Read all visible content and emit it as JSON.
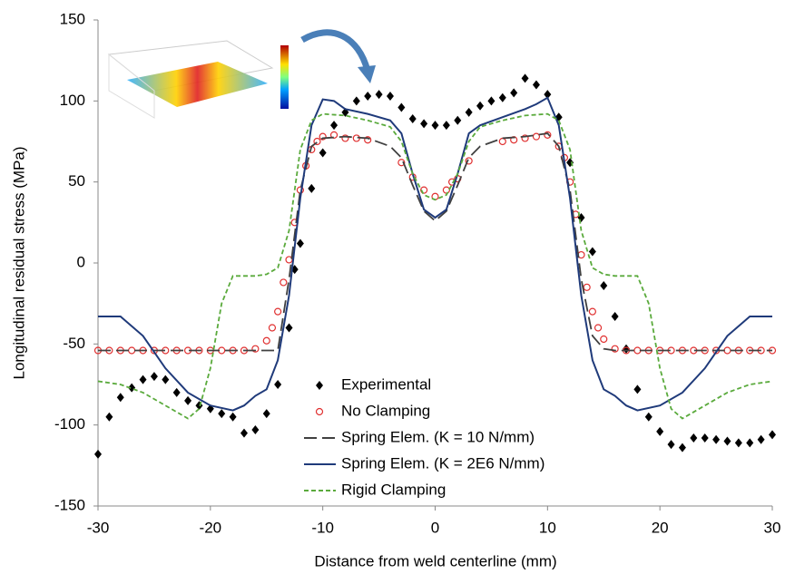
{
  "chart_data": {
    "type": "line",
    "x_label": "Distance from weld centerline (mm)",
    "y_label": "Longitudinal residual stress (MPa)",
    "xlim": [
      -30,
      30
    ],
    "xticks": [
      -30,
      -20,
      -10,
      0,
      10,
      20,
      30
    ],
    "ylim": [
      -150,
      150
    ],
    "yticks": [
      -150,
      -100,
      -50,
      0,
      50,
      100,
      150
    ],
    "series": [
      {
        "name": "Experimental",
        "color": "#000000",
        "style": "none",
        "marker": "diamond",
        "x": [
          -30,
          -29,
          -28,
          -27,
          -26,
          -25,
          -24,
          -23,
          -22,
          -21,
          -20,
          -19,
          -18,
          -17,
          -16,
          -15,
          -14,
          -13,
          -12.5,
          -12,
          -11,
          -10,
          -9,
          -8,
          -7,
          -6,
          -5,
          -4,
          -3,
          -2,
          -1,
          0,
          1,
          2,
          3,
          4,
          5,
          6,
          7,
          8,
          9,
          10,
          11,
          12,
          13,
          14,
          15,
          16,
          17,
          18,
          19,
          20,
          21,
          22,
          23,
          24,
          25,
          26,
          27,
          28,
          29,
          30
        ],
        "values": [
          -118,
          -95,
          -83,
          -77,
          -72,
          -70,
          -72,
          -80,
          -85,
          -88,
          -90,
          -93,
          -95,
          -105,
          -103,
          -93,
          -75,
          -40,
          -4,
          12,
          46,
          68,
          85,
          93,
          100,
          103,
          104,
          103,
          96,
          89,
          86,
          85,
          85,
          88,
          93,
          97,
          100,
          102,
          105,
          114,
          110,
          104,
          90,
          62,
          28,
          7,
          -14,
          -33,
          -53,
          -78,
          -95,
          -104,
          -112,
          -114,
          -108,
          -108,
          -109,
          -110,
          -111,
          -111,
          -109,
          -106
        ]
      },
      {
        "name": "No Clamping",
        "color": "#e03030",
        "style": "none",
        "marker": "circle",
        "x": [
          -30,
          -29,
          -28,
          -27,
          -26,
          -25,
          -24,
          -23,
          -22,
          -21,
          -20,
          -19,
          -18,
          -17,
          -16,
          -15,
          -14.5,
          -14,
          -13.5,
          -13,
          -12.5,
          -12,
          -11.5,
          -11,
          -10.5,
          -10,
          -9,
          -8,
          -7,
          -6,
          -3,
          -2,
          -1,
          0,
          1,
          1.5,
          2,
          3,
          6,
          7,
          8,
          9,
          10,
          11,
          11.5,
          12,
          12.5,
          13,
          13.5,
          14,
          14.5,
          15,
          16,
          17,
          18,
          19,
          20,
          21,
          22,
          23,
          24,
          25,
          26,
          27,
          28,
          29,
          30
        ],
        "values": [
          -54,
          -54,
          -54,
          -54,
          -54,
          -54,
          -54,
          -54,
          -54,
          -54,
          -54,
          -54,
          -54,
          -54,
          -53,
          -48,
          -40,
          -30,
          -12,
          2,
          25,
          45,
          60,
          70,
          75,
          78,
          79,
          77,
          77,
          76,
          62,
          53,
          45,
          41,
          45,
          50,
          52,
          63,
          75,
          76,
          77,
          78,
          79,
          72,
          65,
          50,
          30,
          5,
          -15,
          -30,
          -40,
          -47,
          -53,
          -54,
          -54,
          -54,
          -54,
          -54,
          -54,
          -54,
          -54,
          -54,
          -54,
          -54,
          -54,
          -54,
          -54
        ]
      },
      {
        "name": "Spring Elem. (K = 10 N/mm)",
        "color": "#404040",
        "style": "long-dash",
        "marker": "none",
        "x": [
          -30,
          -14,
          -13,
          -12,
          -11,
          -10,
          -8,
          -6,
          -4,
          -3,
          -2,
          -1,
          0,
          1,
          2,
          3,
          4,
          6,
          8,
          10,
          11,
          12,
          13,
          14,
          15,
          16,
          30
        ],
        "values": [
          -54,
          -54,
          -10,
          45,
          72,
          77,
          78,
          77,
          72,
          65,
          48,
          32,
          26,
          32,
          48,
          65,
          72,
          77,
          78,
          80,
          72,
          45,
          -10,
          -45,
          -53,
          -54,
          -54
        ]
      },
      {
        "name": "Spring Elem. (K = 2E6 N/mm)",
        "color": "#1f3a7a",
        "style": "solid",
        "marker": "none",
        "x": [
          -30,
          -28,
          -26,
          -24,
          -22,
          -20,
          -18,
          -17,
          -16,
          -15,
          -14,
          -13,
          -12,
          -11,
          -10,
          -9,
          -8,
          -6,
          -4,
          -3,
          -2,
          -1,
          0,
          1,
          2,
          3,
          4,
          6,
          8,
          9,
          10,
          11,
          12,
          13,
          14,
          15,
          16,
          17,
          18,
          20,
          22,
          24,
          26,
          28,
          30
        ],
        "values": [
          -33,
          -33,
          -45,
          -65,
          -80,
          -88,
          -91,
          -88,
          -82,
          -78,
          -60,
          -20,
          40,
          85,
          101,
          100,
          95,
          92,
          88,
          80,
          55,
          33,
          28,
          33,
          55,
          80,
          85,
          90,
          95,
          98,
          102,
          85,
          40,
          -20,
          -60,
          -78,
          -82,
          -88,
          -91,
          -88,
          -80,
          -65,
          -45,
          -33,
          -33
        ]
      },
      {
        "name": "Rigid Clamping",
        "color": "#5aaa3c",
        "style": "short-dash",
        "marker": "none",
        "x": [
          -30,
          -28,
          -26,
          -24,
          -22,
          -21,
          -20,
          -19,
          -18,
          -16,
          -15,
          -14,
          -13,
          -12,
          -11,
          -10,
          -8,
          -6,
          -4,
          -3,
          -2,
          -1,
          0,
          1,
          2,
          3,
          4,
          6,
          8,
          10,
          11,
          12,
          13,
          14,
          15,
          16,
          18,
          19,
          20,
          21,
          22,
          24,
          26,
          28,
          30
        ],
        "values": [
          -73,
          -75,
          -80,
          -88,
          -96,
          -90,
          -65,
          -25,
          -8,
          -8,
          -7,
          -3,
          20,
          70,
          88,
          92,
          91,
          88,
          84,
          75,
          55,
          42,
          39,
          42,
          55,
          75,
          84,
          88,
          91,
          92,
          88,
          70,
          20,
          -3,
          -7,
          -8,
          -8,
          -25,
          -65,
          -90,
          -96,
          -88,
          -80,
          -75,
          -73
        ]
      }
    ]
  }
}
